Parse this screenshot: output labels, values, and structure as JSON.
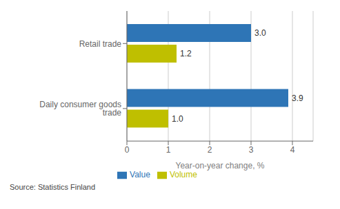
{
  "chart_data": {
    "type": "bar",
    "orientation": "horizontal",
    "categories": [
      "Retail trade",
      "Daily consumer goods trade"
    ],
    "series": [
      {
        "name": "Value",
        "color": "#2E75B6",
        "values": [
          3.0,
          3.9
        ],
        "value_labels": [
          "3.0",
          "3.9"
        ]
      },
      {
        "name": "Volume",
        "color": "#BFBF00",
        "values": [
          1.2,
          1.0
        ],
        "value_labels": [
          "1.2",
          "1.0"
        ]
      }
    ],
    "xlabel": "Year-on-year change, %",
    "xlim": [
      0,
      4.5
    ],
    "xticks": [
      0,
      1,
      2,
      3,
      4
    ],
    "grid": true,
    "legend": "bottom",
    "data_labels": true,
    "annotations": [
      "Source: Statistics Finland"
    ]
  }
}
